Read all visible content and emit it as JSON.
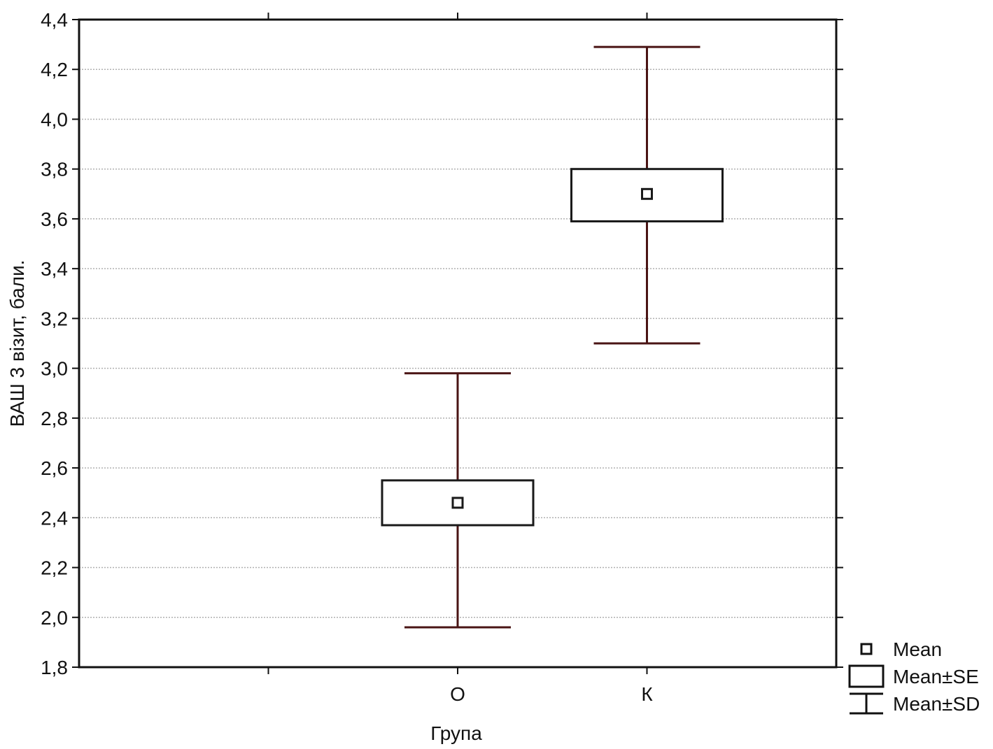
{
  "chart_data": {
    "type": "box",
    "xlabel": "Група",
    "ylabel": "ВАШ 3 візит, бали.",
    "ylim": [
      1.8,
      4.4
    ],
    "yticks": [
      "1,8",
      "2,0",
      "2,2",
      "2,4",
      "2,6",
      "2,8",
      "3,0",
      "3,2",
      "3,4",
      "3,6",
      "3,8",
      "4,0",
      "4,2",
      "4,4"
    ],
    "grid": true,
    "legend_position": "bottom-right, outside plot",
    "categories": [
      "О",
      "К"
    ],
    "groups": [
      {
        "category": "О",
        "mean": 2.46,
        "se_low": 2.37,
        "se_high": 2.55,
        "sd_low": 1.96,
        "sd_high": 2.98
      },
      {
        "category": "К",
        "mean": 3.7,
        "se_low": 3.59,
        "se_high": 3.8,
        "sd_low": 3.1,
        "sd_high": 4.29
      }
    ],
    "legend": [
      {
        "key": "mean",
        "label": "Mean"
      },
      {
        "key": "se",
        "label": "Mean±SE"
      },
      {
        "key": "sd",
        "label": "Mean±SD"
      }
    ],
    "colors": {
      "whisker": "#4a1414",
      "box": "#1a1a1a",
      "grid": "#b0b0b0"
    }
  }
}
